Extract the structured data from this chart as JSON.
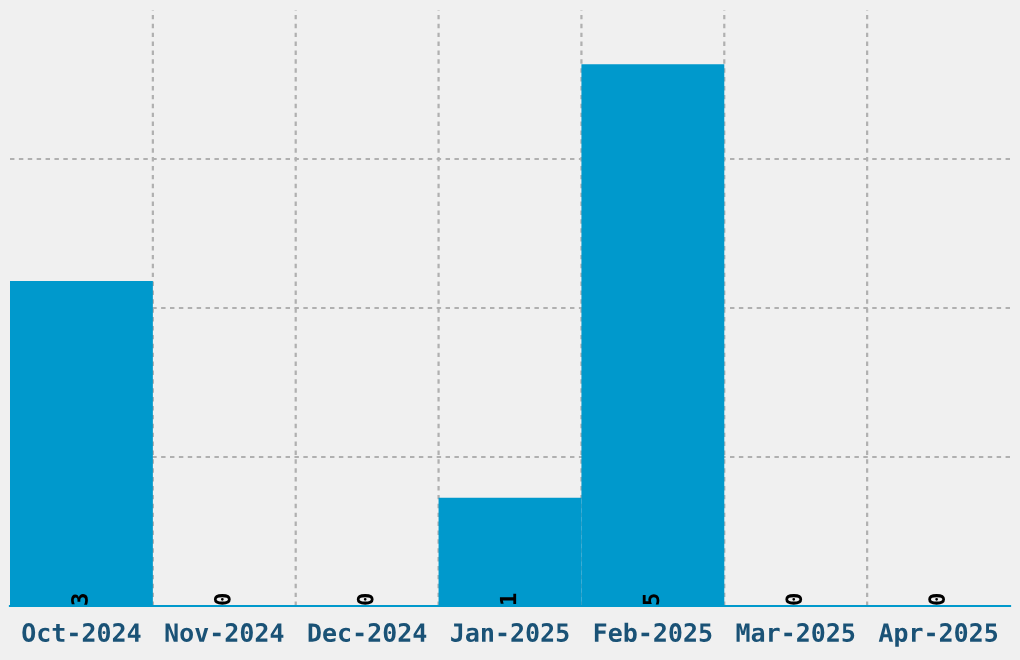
{
  "chart_data": {
    "type": "bar",
    "categories": [
      "Oct-2024",
      "Nov-2024",
      "Dec-2024",
      "Jan-2025",
      "Feb-2025",
      "Mar-2025",
      "Apr-2025"
    ],
    "values": [
      3,
      0,
      0,
      1,
      5,
      0,
      0
    ],
    "color": "#0099cc",
    "ylim": [
      0,
      5.5
    ],
    "yticks": [
      {
        "value": 1.375,
        "label": null
      },
      {
        "value": 2.75,
        "label": null
      },
      {
        "value": 4.125,
        "label": null
      }
    ],
    "tick_labels": "x",
    "grid": true,
    "data_labels": true
  }
}
